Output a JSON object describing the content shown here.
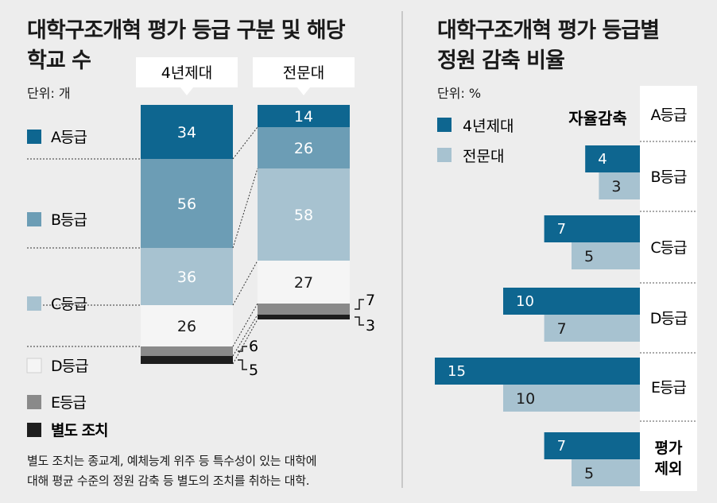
{
  "left": {
    "title_line1": "대학구조개혁 평가 등급 구분 및 해당",
    "title_line2": "학교 수",
    "unit": "단위: 개",
    "note_line1": "별도 조치는 종교계, 예체능계 위주 등 특수성이 있는 대학에",
    "note_line2": "대해 평균 수준의 정원 감축 등 별도의 조치를 취하는 대학."
  },
  "right": {
    "title_line1": "대학구조개혁 평가 등급별",
    "title_line2": "정원 감축 비율",
    "unit": "단위: %",
    "column_header": "자율감축"
  },
  "chart_data": [
    {
      "type": "bar",
      "stacked": true,
      "categories": [
        "4년제대",
        "전문대"
      ],
      "series": [
        {
          "name": "A등급",
          "values": [
            34,
            14
          ],
          "color": "#0e6690"
        },
        {
          "name": "B등급",
          "values": [
            56,
            26
          ],
          "color": "#6c9db5"
        },
        {
          "name": "C등급",
          "values": [
            36,
            58
          ],
          "color": "#a7c2d0"
        },
        {
          "name": "D등급",
          "values": [
            26,
            27
          ],
          "color": "#f5f5f5"
        },
        {
          "name": "E등급",
          "values": [
            6,
            7
          ],
          "color": "#8a8a8a"
        },
        {
          "name": "별도 조치",
          "values": [
            5,
            3
          ],
          "color": "#1e1e1e"
        }
      ],
      "legend_position": "left"
    },
    {
      "type": "bar",
      "orientation": "horizontal",
      "categories": [
        "자율감축",
        "A등급",
        "B등급",
        "C등급",
        "D등급",
        "E등급",
        "평가 제외"
      ],
      "series": [
        {
          "name": "4년제대",
          "values": [
            null,
            null,
            4,
            7,
            10,
            15,
            7
          ],
          "color": "#0e6690"
        },
        {
          "name": "전문대",
          "values": [
            null,
            null,
            3,
            5,
            7,
            10,
            5
          ],
          "color": "#a7c2d0"
        }
      ],
      "legend_position": "top-left"
    }
  ]
}
